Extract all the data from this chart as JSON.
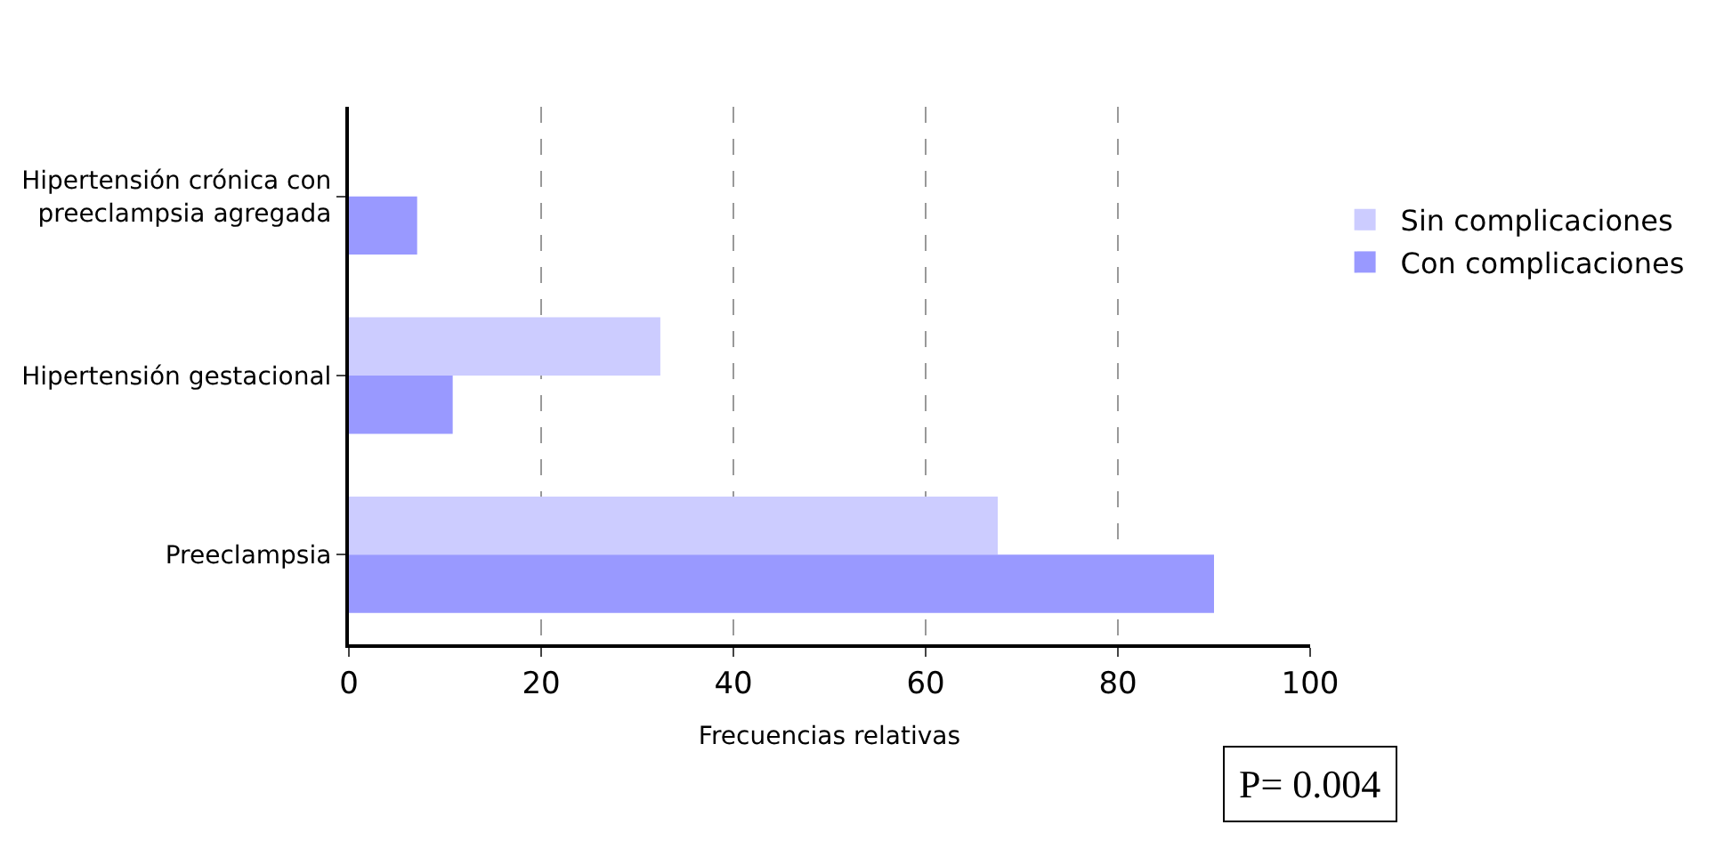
{
  "chart_data": {
    "type": "bar",
    "orientation": "horizontal",
    "xlabel": "Frecuencias relativas",
    "categories": [
      "Hipertensión crónica con\npreeclampsia agregada",
      "Hipertensión gestacional",
      "Preeclampsia"
    ],
    "series": [
      {
        "name": "Sin complicaciones",
        "color": "#ccccff",
        "values": [
          0,
          32.4,
          67.5
        ]
      },
      {
        "name": "Con complicaciones",
        "color": "#9999ff",
        "values": [
          7.1,
          10.8,
          90
        ]
      }
    ],
    "xlim": [
      0,
      100
    ],
    "xticks": [
      0,
      20,
      40,
      60,
      80,
      100
    ],
    "grid": "x",
    "legend": "right",
    "annotations": [
      "P= 0.004"
    ]
  }
}
